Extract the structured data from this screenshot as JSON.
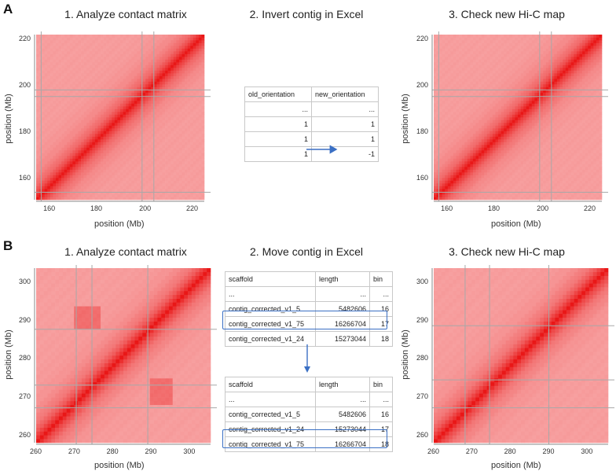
{
  "panels": {
    "A": {
      "letter": "A",
      "step1": "1. Analyze contact matrix",
      "step2": "2. Invert contig in Excel",
      "step3": "3. Check new Hi-C map",
      "xlabel": "position (Mb)",
      "ylabel": "position (Mb)",
      "x_ticks": [
        "160",
        "180",
        "200",
        "220"
      ],
      "y_ticks": [
        "220",
        "200",
        "180",
        "160"
      ],
      "table": {
        "headers": [
          "old_orientation",
          "new_orientation"
        ],
        "rows": [
          [
            "...",
            "..."
          ],
          [
            "1",
            "1"
          ],
          [
            "1",
            "1"
          ],
          [
            "1",
            "-1"
          ]
        ]
      }
    },
    "B": {
      "letter": "B",
      "step1": "1. Analyze contact matrix",
      "step2": "2. Move contig in Excel",
      "step3": "3. Check new Hi-C map",
      "xlabel": "position (Mb)",
      "ylabel": "position (Mb)",
      "x_ticks": [
        "260",
        "270",
        "280",
        "290",
        "300"
      ],
      "y_ticks": [
        "300",
        "290",
        "280",
        "270",
        "260"
      ],
      "table_before": {
        "headers": [
          "scaffold",
          "length",
          "bin"
        ],
        "rows": [
          [
            "...",
            "...",
            "..."
          ],
          [
            "contig_corrected_v1_5",
            "5482606",
            "16"
          ],
          [
            "contig_corrected_v1_75",
            "16266704",
            "17"
          ],
          [
            "contig_corrected_v1_24",
            "15273044",
            "18"
          ]
        ]
      },
      "table_after": {
        "headers": [
          "scaffold",
          "length",
          "bin"
        ],
        "rows": [
          [
            "...",
            "...",
            "..."
          ],
          [
            "contig_corrected_v1_5",
            "5482606",
            "16"
          ],
          [
            "contig_corrected_v1_24",
            "15273044",
            "17"
          ],
          [
            "contig_corrected_v1_75",
            "16266704",
            "18"
          ]
        ]
      }
    }
  },
  "colors": {
    "heat_low": "#f7a0a0",
    "heat_high": "#e81010",
    "grid": "#a8a8a8",
    "highlight": "#3a6fc4",
    "arrow": "#3a6fc4"
  }
}
